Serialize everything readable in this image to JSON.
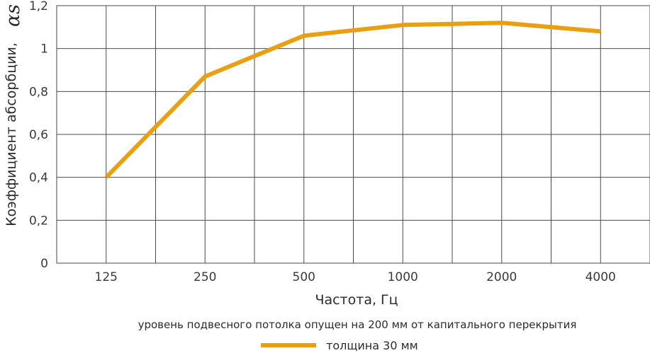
{
  "chart_data": {
    "type": "line",
    "xlabel": "Частота, Гц",
    "ylabel": "Коэффициент абсорбции,",
    "ylabel_symbol": "αs",
    "categories": [
      "125",
      "250",
      "500",
      "1000",
      "2000",
      "4000"
    ],
    "y_ticks": [
      "0",
      "0,2",
      "0,4",
      "0,6",
      "0,8",
      "1",
      "1,2"
    ],
    "ylim": [
      0,
      1.2
    ],
    "grid": true,
    "note": "уровень подвесного потолка опущен на 200 мм от капитального перекрытия",
    "legend_position": "bottom",
    "series": [
      {
        "name": "толщина 30 мм",
        "color": "#E8A010",
        "values": [
          0.4,
          0.87,
          1.06,
          1.11,
          1.12,
          1.08
        ]
      }
    ]
  }
}
